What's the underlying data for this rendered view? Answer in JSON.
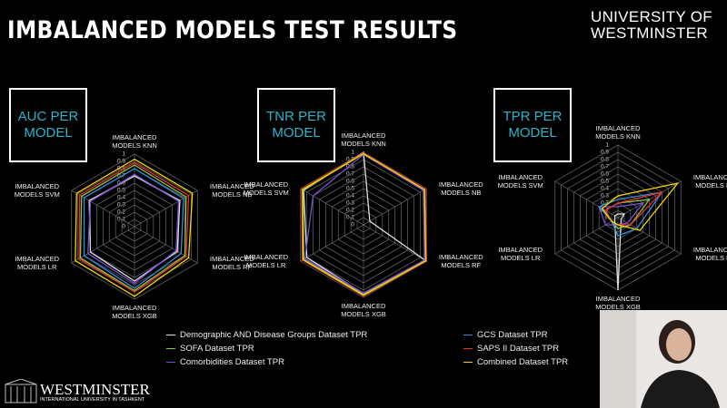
{
  "slide": {
    "title": "IMBALANCED MODELS TEST RESULTS",
    "logo": "UNIVERSITY OF WESTMINSTER",
    "footer_name": "WESTMINSTER",
    "footer_sub": "INTERNATIONAL UNIVERSITY IN TASHKENT"
  },
  "chart_data": [
    {
      "type": "radar",
      "title": "AUC PER MODEL",
      "categories": [
        "IMBALANCED MODELS KNN",
        "IMBALANCED MODELS NB",
        "IMBALANCED MODELS RF",
        "IMBALANCED MODELS XGB",
        "IMBALANCED MODELS LR",
        "IMBALANCED MODELS SVM"
      ],
      "rlim": [
        0,
        1
      ],
      "rticks": [
        0,
        0.1,
        0.2,
        0.3,
        0.4,
        0.5,
        0.6,
        0.7,
        0.8,
        0.9,
        1
      ],
      "series": [
        {
          "name": "Demographic AND Disease Groups Dataset TPR",
          "color": "#e0e0e0",
          "values": [
            0.7,
            0.72,
            0.68,
            0.75,
            0.7,
            0.72
          ]
        },
        {
          "name": "SOFA Dataset TPR",
          "color": "#8dc63f",
          "values": [
            0.85,
            0.82,
            0.8,
            0.88,
            0.86,
            0.84
          ]
        },
        {
          "name": "Comorbidities Dataset TPR",
          "color": "#7b4fd6",
          "values": [
            0.72,
            0.7,
            0.66,
            0.78,
            0.74,
            0.7
          ]
        },
        {
          "name": "GCS Dataset TPR",
          "color": "#2f8fe0",
          "values": [
            0.8,
            0.78,
            0.74,
            0.85,
            0.8,
            0.8
          ]
        },
        {
          "name": "SAPS II Dataset TPR",
          "color": "#e8302a",
          "values": [
            0.88,
            0.86,
            0.82,
            0.9,
            0.88,
            0.87
          ]
        },
        {
          "name": "Combined Dataset TPR",
          "color": "#f2d500",
          "values": [
            0.93,
            0.92,
            0.86,
            0.96,
            0.94,
            0.92
          ]
        }
      ]
    },
    {
      "type": "radar",
      "title": "TNR PER MODEL",
      "categories": [
        "IMBALANCED MODELS KNN",
        "IMBALANCED MODELS NB",
        "IMBALANCED MODELS RF",
        "IMBALANCED MODELS XGB",
        "IMBALANCED MODELS LR",
        "IMBALANCED MODELS SVM"
      ],
      "rlim": [
        0,
        1
      ],
      "rticks": [
        0,
        0.1,
        0.2,
        0.3,
        0.4,
        0.5,
        0.6,
        0.7,
        0.8,
        0.9,
        1
      ],
      "series": [
        {
          "values": [
            1,
            0.1,
            1,
            0.95,
            0.9,
            0.95
          ]
        },
        {
          "values": [
            0.98,
            0.96,
            0.98,
            0.96,
            0.95,
            0.96
          ]
        },
        {
          "values": [
            0.97,
            0.95,
            0.97,
            0.94,
            0.93,
            0.8
          ]
        },
        {
          "values": [
            0.98,
            0.97,
            0.99,
            0.97,
            0.96,
            0.97
          ]
        },
        {
          "values": [
            0.99,
            0.98,
            1,
            0.98,
            0.97,
            0.98
          ]
        },
        {
          "values": [
            0.98,
            0.97,
            0.99,
            0.97,
            0.96,
            0.97
          ]
        }
      ]
    },
    {
      "type": "radar",
      "title": "TPR PER MODEL",
      "categories": [
        "IMBALANCED MODELS KNN",
        "IMBALANCED MODELS NB",
        "IMBALANCED MODELS RF",
        "IMBALANCED MODELS XGB",
        "IMBALANCED MODELS LR",
        "IMBALANCED MODELS SVM"
      ],
      "rlim": [
        0,
        1
      ],
      "rticks": [
        0,
        0.1,
        0.2,
        0.3,
        0.4,
        0.5,
        0.6,
        0.7,
        0.8,
        0.9,
        1
      ],
      "series": [
        {
          "values": [
            0.05,
            0.1,
            0.05,
            1,
            0.05,
            0.05
          ]
        },
        {
          "values": [
            0.2,
            0.5,
            0.2,
            0.15,
            0.1,
            0.2
          ]
        },
        {
          "values": [
            0.15,
            0.4,
            0.15,
            0.1,
            0.2,
            0.3
          ]
        },
        {
          "values": [
            0.25,
            0.7,
            0.3,
            0.25,
            0.1,
            0.3
          ]
        },
        {
          "values": [
            0.2,
            0.7,
            0.2,
            0.1,
            0.1,
            0.2
          ]
        },
        {
          "values": [
            0.3,
            0.95,
            0.35,
            0.1,
            0.1,
            0.25
          ]
        }
      ]
    }
  ]
}
